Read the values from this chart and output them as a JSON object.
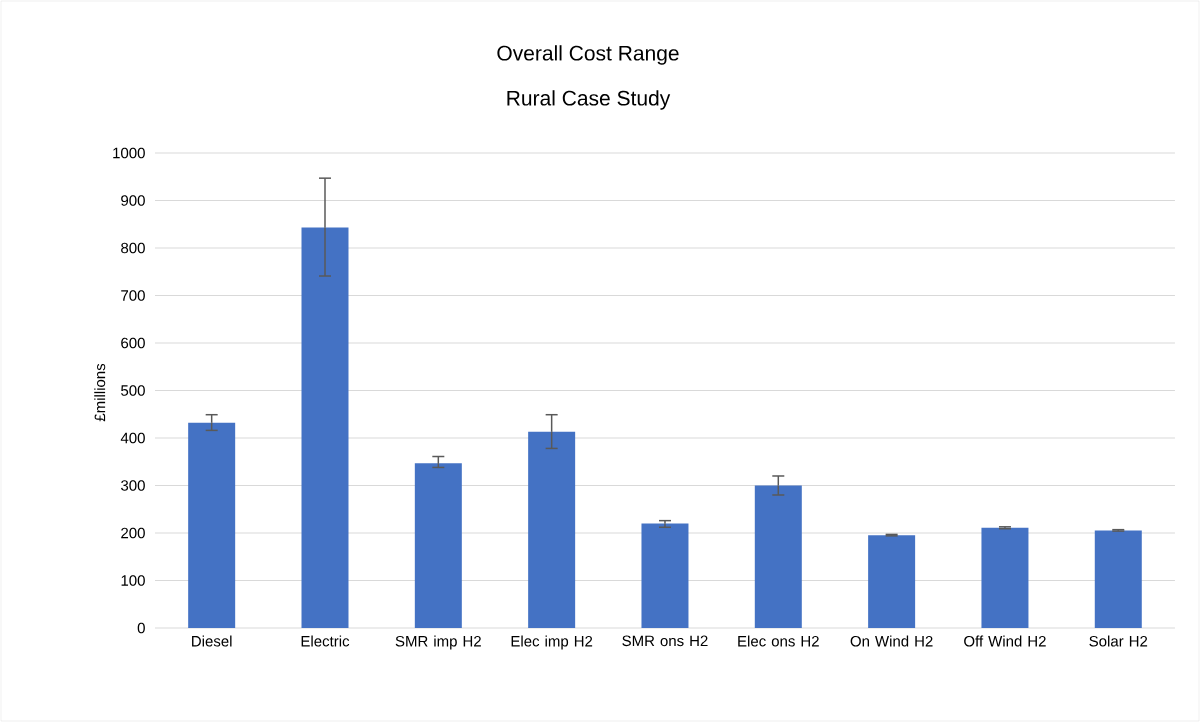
{
  "chart_data": {
    "type": "bar",
    "title": "Overall Cost Range",
    "subtitle": "Rural Case Study",
    "ylabel": "£millions",
    "categories": [
      "Diesel",
      "Electric",
      "SMR imp H2",
      "Elec imp H2",
      "SMR ons H2",
      "Elec ons H2",
      "On Wind H2",
      "Off Wind H2",
      "Solar H2"
    ],
    "values": [
      432,
      843,
      347,
      413,
      220,
      300,
      195,
      211,
      205
    ],
    "errors": [
      [
        416,
        449
      ],
      [
        741,
        947
      ],
      [
        338,
        361
      ],
      [
        378,
        449
      ],
      [
        212,
        226
      ],
      [
        280,
        320
      ],
      [
        194,
        197
      ],
      [
        209,
        213
      ],
      [
        204,
        207
      ]
    ],
    "color": "#4472c4",
    "ylim": [
      0,
      1000
    ],
    "yticks": [
      0,
      100,
      200,
      300,
      400,
      500,
      600,
      700,
      800,
      900,
      1000
    ],
    "grid": "y"
  }
}
